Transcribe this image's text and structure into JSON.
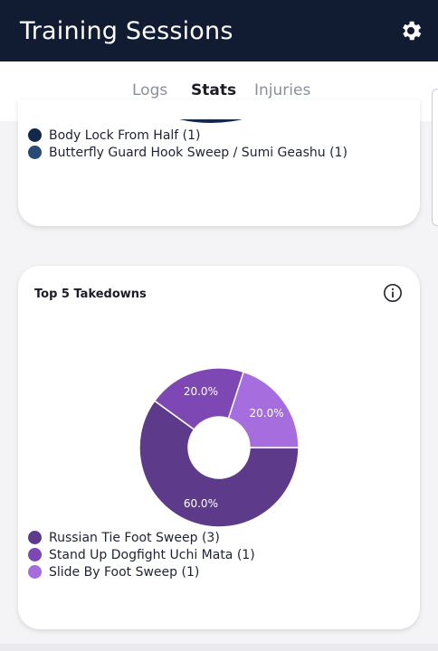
{
  "header": {
    "title": "Training Sessions",
    "settings_icon": "gear-icon"
  },
  "tabs": [
    {
      "label": "Logs",
      "active": false
    },
    {
      "label": "Stats",
      "active": true
    },
    {
      "label": "Injuries",
      "active": false
    }
  ],
  "accent_color": "#f0a81c",
  "submissions_card": {
    "legend": [
      {
        "label": "Body Lock From Half (1)",
        "color": "#13294b"
      },
      {
        "label": "Butterfly Guard Hook Sweep / Sumi Geashu (1)",
        "color": "#2a4a78"
      }
    ]
  },
  "takedowns_card": {
    "title": "Top 5 Takedowns",
    "info_icon": "info-icon",
    "legend": [
      {
        "label": "Russian Tie Foot Sweep (3)",
        "color": "#5e3b8a"
      },
      {
        "label": "Stand Up Dogfight Uchi Mata (1)",
        "color": "#7d48b3"
      },
      {
        "label": "Slide By Foot Sweep (1)",
        "color": "#a56ddd"
      }
    ]
  },
  "chart_data": {
    "type": "pie",
    "categories": [
      "Russian Tie Foot Sweep",
      "Stand Up Dogfight Uchi Mata",
      "Slide By Foot Sweep"
    ],
    "values": [
      3,
      1,
      1
    ],
    "percent_labels": [
      "60.0%",
      "20.0%",
      "20.0%"
    ],
    "colors": [
      "#5e3b8a",
      "#7d48b3",
      "#a56ddd"
    ],
    "donut": true
  }
}
